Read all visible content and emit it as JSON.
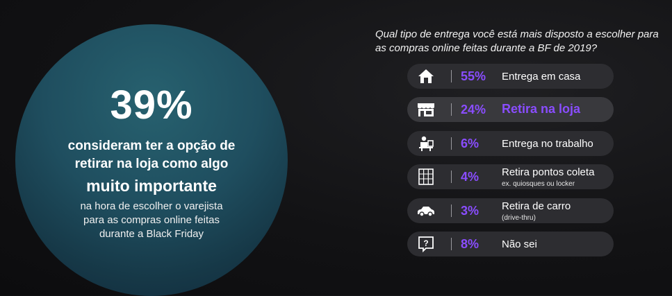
{
  "left_panel": {
    "big_stat": "39%",
    "line1": "consideram ter a opção de",
    "line2": "retirar na loja como algo",
    "line3": "muito importante",
    "line4": "na hora de escolher o varejista",
    "line5": "para as compras online feitas",
    "line6": "durante a Black Friday"
  },
  "chart_data": {
    "type": "table",
    "title": "Qual tipo de entrega você está mais disposto a escolher para as compras online feitas durante a BF de 2019?",
    "rows": [
      {
        "icon": "house-icon",
        "value": "55%",
        "label": "Entrega em casa",
        "sublabel": "",
        "highlight": false
      },
      {
        "icon": "storefront-icon",
        "value": "24%",
        "label": "Retira na loja",
        "sublabel": "",
        "highlight": true
      },
      {
        "icon": "office-worker-icon",
        "value": "6%",
        "label": "Entrega no trabalho",
        "sublabel": "",
        "highlight": false
      },
      {
        "icon": "locker-icon",
        "value": "4%",
        "label": "Retira pontos coleta",
        "sublabel": "ex. quiosques ou locker",
        "highlight": false
      },
      {
        "icon": "car-icon",
        "value": "3%",
        "label": "Retira de carro",
        "sublabel": "(drive-thru)",
        "highlight": false
      },
      {
        "icon": "question-icon",
        "value": "8%",
        "label": "Não sei",
        "sublabel": "",
        "highlight": false
      }
    ],
    "colors": {
      "accent": "#8a4dff",
      "row_bg": "#2d2d31",
      "circle": "#1f4e5f"
    }
  }
}
